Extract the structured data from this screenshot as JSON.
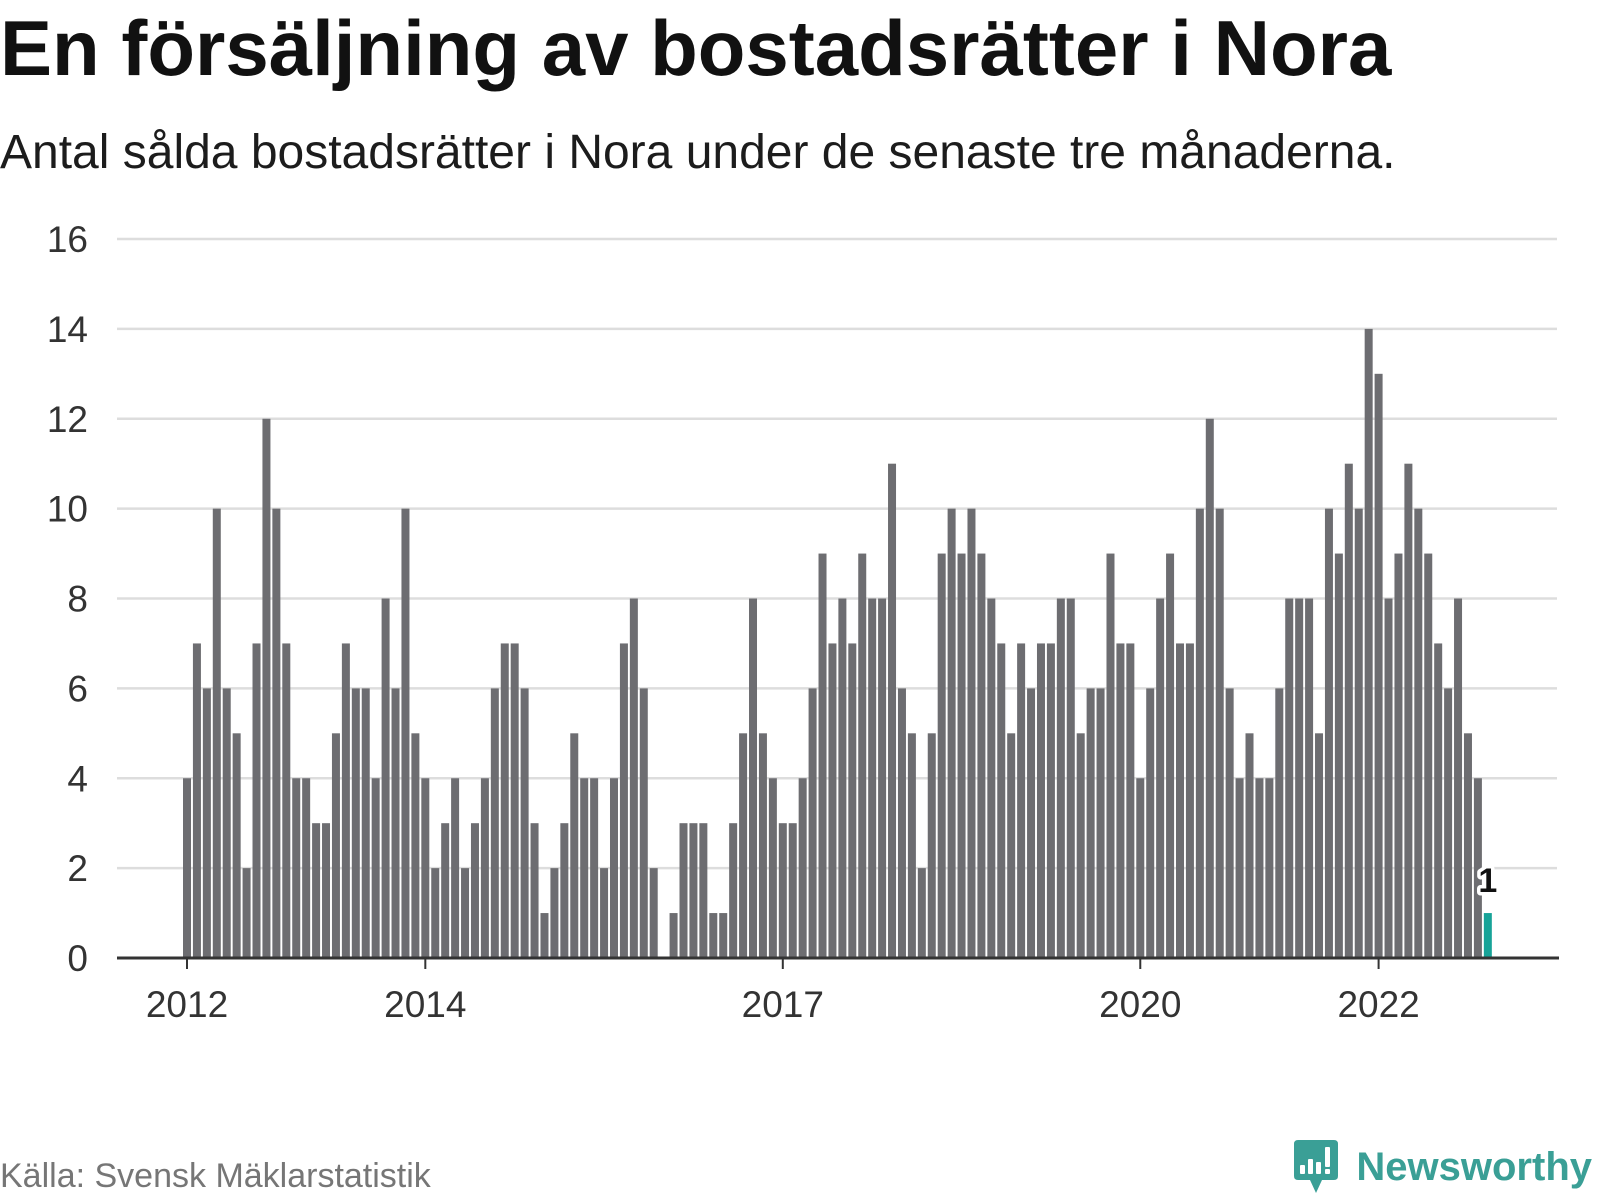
{
  "colors": {
    "bar": "#6d6d71",
    "highlight": "#17a398",
    "brand": "#3a9f96"
  },
  "branding": {
    "logo_text": "Newsworthy",
    "logo_icon": "newsworthy-chart-bubble-icon"
  },
  "chart_data": {
    "type": "bar",
    "title": "En försäljning av bostadsrätter i Nora",
    "subtitle": "Antal sålda bostadsrätter i Nora under de senaste tre månaderna.",
    "source": "Källa: Svensk Mäklarstatistik",
    "x": [
      "2012-01",
      "2012-02",
      "2012-03",
      "2012-04",
      "2012-05",
      "2012-06",
      "2012-07",
      "2012-08",
      "2012-09",
      "2012-10",
      "2012-11",
      "2012-12",
      "2013-01",
      "2013-02",
      "2013-03",
      "2013-04",
      "2013-05",
      "2013-06",
      "2013-07",
      "2013-08",
      "2013-09",
      "2013-10",
      "2013-11",
      "2013-12",
      "2014-01",
      "2014-02",
      "2014-03",
      "2014-04",
      "2014-05",
      "2014-06",
      "2014-07",
      "2014-08",
      "2014-09",
      "2014-10",
      "2014-11",
      "2014-12",
      "2015-01",
      "2015-02",
      "2015-03",
      "2015-04",
      "2015-05",
      "2015-06",
      "2015-07",
      "2015-08",
      "2015-09",
      "2015-10",
      "2015-11",
      "2015-12",
      "2016-01",
      "2016-02",
      "2016-03",
      "2016-04",
      "2016-05",
      "2016-06",
      "2016-07",
      "2016-08",
      "2016-09",
      "2016-10",
      "2016-11",
      "2016-12",
      "2017-01",
      "2017-02",
      "2017-03",
      "2017-04",
      "2017-05",
      "2017-06",
      "2017-07",
      "2017-08",
      "2017-09",
      "2017-10",
      "2017-11",
      "2017-12",
      "2018-01",
      "2018-02",
      "2018-03",
      "2018-04",
      "2018-05",
      "2018-06",
      "2018-07",
      "2018-08",
      "2018-09",
      "2018-10",
      "2018-11",
      "2018-12",
      "2019-01",
      "2019-02",
      "2019-03",
      "2019-04",
      "2019-05",
      "2019-06",
      "2019-07",
      "2019-08",
      "2019-09",
      "2019-10",
      "2019-11",
      "2019-12",
      "2020-01",
      "2020-02",
      "2020-03",
      "2020-04",
      "2020-05",
      "2020-06",
      "2020-07",
      "2020-08",
      "2020-09",
      "2020-10",
      "2020-11",
      "2020-12",
      "2021-01",
      "2021-02",
      "2021-03",
      "2021-04",
      "2021-05",
      "2021-06",
      "2021-07",
      "2021-08",
      "2021-09",
      "2021-10",
      "2021-11",
      "2021-12",
      "2022-01",
      "2022-02",
      "2022-03",
      "2022-04",
      "2022-05",
      "2022-06",
      "2022-07",
      "2022-08",
      "2022-09",
      "2022-10",
      "2022-11",
      "2022-12"
    ],
    "values": [
      4,
      7,
      6,
      10,
      6,
      5,
      2,
      7,
      12,
      10,
      7,
      4,
      4,
      3,
      3,
      5,
      7,
      6,
      6,
      4,
      8,
      6,
      10,
      5,
      4,
      2,
      3,
      4,
      2,
      3,
      4,
      6,
      7,
      7,
      6,
      3,
      1,
      2,
      3,
      5,
      4,
      4,
      2,
      4,
      7,
      8,
      6,
      2,
      0,
      1,
      3,
      3,
      3,
      1,
      1,
      3,
      5,
      8,
      5,
      4,
      3,
      3,
      4,
      6,
      9,
      7,
      8,
      7,
      9,
      8,
      8,
      11,
      6,
      5,
      2,
      5,
      9,
      10,
      9,
      10,
      9,
      8,
      7,
      5,
      7,
      6,
      7,
      7,
      8,
      8,
      5,
      6,
      6,
      9,
      7,
      7,
      4,
      6,
      8,
      9,
      7,
      7,
      10,
      12,
      10,
      6,
      4,
      5,
      4,
      4,
      6,
      8,
      8,
      8,
      5,
      10,
      9,
      11,
      10,
      14,
      13,
      8,
      9,
      11,
      10,
      9,
      7,
      6,
      8,
      5,
      4,
      1
    ],
    "xticks": [
      "2012",
      "2014",
      "2017",
      "2020",
      "2022"
    ],
    "yticks": [
      0,
      2,
      4,
      6,
      8,
      10,
      12,
      14,
      16
    ],
    "ylim": [
      0,
      16
    ],
    "grid": true,
    "highlight": {
      "x": "2022-12",
      "label": "1"
    }
  }
}
